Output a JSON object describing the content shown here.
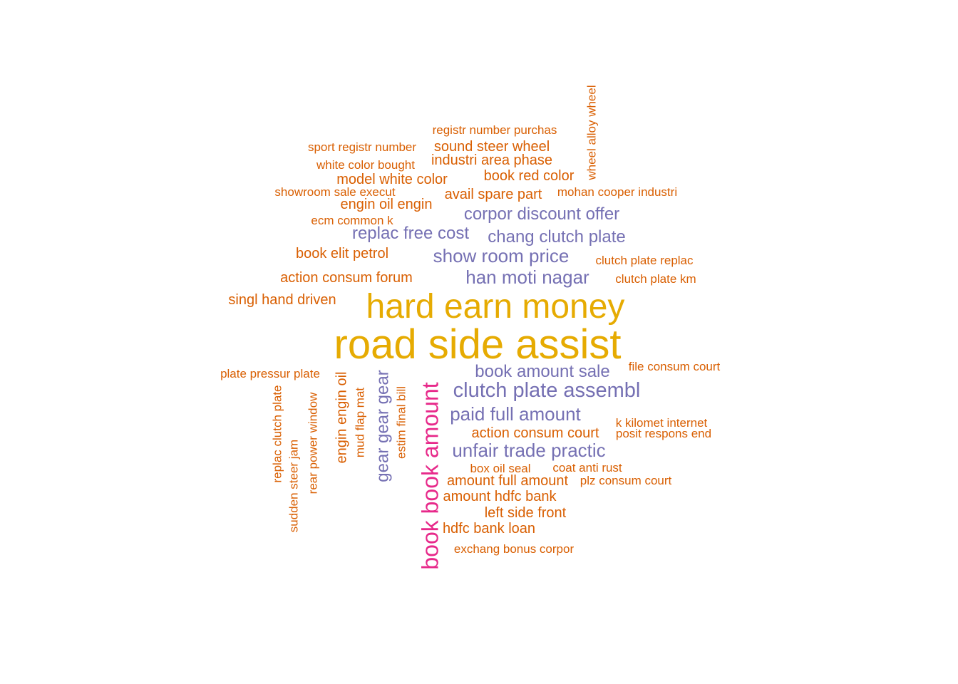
{
  "colors": {
    "background": "#ffffff",
    "gold": "#E6AB02",
    "orange": "#D95F02",
    "purple": "#7570B3",
    "magenta": "#E7298A"
  },
  "chart_data": {
    "type": "wordcloud",
    "title": "",
    "words": [
      {
        "text": "road side assist",
        "color": "gold",
        "rotated": false
      },
      {
        "text": "hard earn money",
        "color": "gold",
        "rotated": false
      },
      {
        "text": "book book amount",
        "color": "magenta",
        "rotated": true
      },
      {
        "text": "clutch plate assembl",
        "color": "purple",
        "rotated": false
      },
      {
        "text": "paid full amount",
        "color": "purple",
        "rotated": false
      },
      {
        "text": "unfair trade practic",
        "color": "purple",
        "rotated": false
      },
      {
        "text": "han moti nagar",
        "color": "purple",
        "rotated": false
      },
      {
        "text": "show room price",
        "color": "purple",
        "rotated": false
      },
      {
        "text": "chang clutch plate",
        "color": "purple",
        "rotated": false
      },
      {
        "text": "corpor discount offer",
        "color": "purple",
        "rotated": false
      },
      {
        "text": "replac free cost",
        "color": "purple",
        "rotated": false
      },
      {
        "text": "book amount sale",
        "color": "purple",
        "rotated": false
      },
      {
        "text": "gear gear gear",
        "color": "purple",
        "rotated": true
      },
      {
        "text": "registr number purchas",
        "color": "orange",
        "rotated": false
      },
      {
        "text": "sport registr number",
        "color": "orange",
        "rotated": false
      },
      {
        "text": "sound steer wheel",
        "color": "orange",
        "rotated": false
      },
      {
        "text": "industri area phase",
        "color": "orange",
        "rotated": false
      },
      {
        "text": "white color bought",
        "color": "orange",
        "rotated": false
      },
      {
        "text": "model white color",
        "color": "orange",
        "rotated": false
      },
      {
        "text": "book red color",
        "color": "orange",
        "rotated": false
      },
      {
        "text": "wheel alloy wheel",
        "color": "orange",
        "rotated": true
      },
      {
        "text": "showroom sale execut",
        "color": "orange",
        "rotated": false
      },
      {
        "text": "avail spare part",
        "color": "orange",
        "rotated": false
      },
      {
        "text": "mohan cooper industri",
        "color": "orange",
        "rotated": false
      },
      {
        "text": "engin oil engin",
        "color": "orange",
        "rotated": false
      },
      {
        "text": "ecm common k",
        "color": "orange",
        "rotated": false
      },
      {
        "text": "book elit petrol",
        "color": "orange",
        "rotated": false
      },
      {
        "text": "clutch plate replac",
        "color": "orange",
        "rotated": false
      },
      {
        "text": "action consum forum",
        "color": "orange",
        "rotated": false
      },
      {
        "text": "clutch plate km",
        "color": "orange",
        "rotated": false
      },
      {
        "text": "singl hand driven",
        "color": "orange",
        "rotated": false
      },
      {
        "text": "plate pressur plate",
        "color": "orange",
        "rotated": false
      },
      {
        "text": "file consum court",
        "color": "orange",
        "rotated": false
      },
      {
        "text": "replac clutch plate",
        "color": "orange",
        "rotated": true
      },
      {
        "text": "sudden steer jam",
        "color": "orange",
        "rotated": true
      },
      {
        "text": "rear power window",
        "color": "orange",
        "rotated": true
      },
      {
        "text": "engin engin oil",
        "color": "orange",
        "rotated": true
      },
      {
        "text": "mud flap mat",
        "color": "orange",
        "rotated": true
      },
      {
        "text": "estim final bill",
        "color": "orange",
        "rotated": true
      },
      {
        "text": "k kilomet internet",
        "color": "orange",
        "rotated": false
      },
      {
        "text": "action consum court",
        "color": "orange",
        "rotated": false
      },
      {
        "text": "posit respons end",
        "color": "orange",
        "rotated": false
      },
      {
        "text": "box oil seal",
        "color": "orange",
        "rotated": false
      },
      {
        "text": "coat anti rust",
        "color": "orange",
        "rotated": false
      },
      {
        "text": "amount full amount",
        "color": "orange",
        "rotated": false
      },
      {
        "text": "plz consum court",
        "color": "orange",
        "rotated": false
      },
      {
        "text": "amount hdfc bank",
        "color": "orange",
        "rotated": false
      },
      {
        "text": "left side front",
        "color": "orange",
        "rotated": false
      },
      {
        "text": "hdfc bank loan",
        "color": "orange",
        "rotated": false
      },
      {
        "text": "exchang bonus corpor",
        "color": "orange",
        "rotated": false
      }
    ]
  }
}
